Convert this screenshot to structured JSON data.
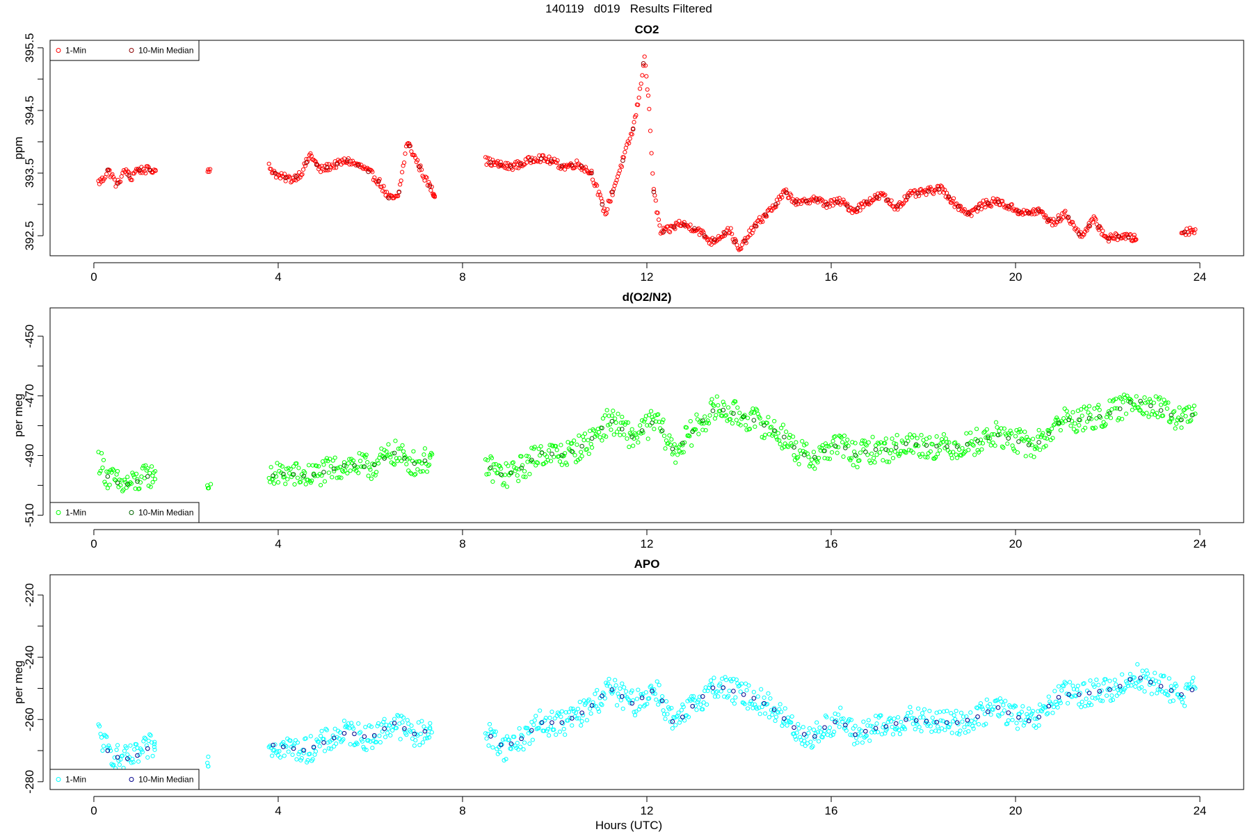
{
  "page_title": "140119   d019   Results Filtered",
  "x_axis_label": "Hours (UTC)",
  "chart_data": [
    {
      "type": "scatter",
      "title": "CO2",
      "xlabel": "",
      "ylabel": "ppm",
      "xlim": [
        -0.95,
        24.95
      ],
      "ylim": [
        392.18,
        395.62
      ],
      "xticks": [
        0,
        4,
        8,
        12,
        16,
        20,
        24
      ],
      "yticks": [
        392.5,
        393.5,
        394.5,
        395.5
      ],
      "ytick_labels": [
        "392.5",
        "393.5",
        "394.5",
        "395.5"
      ],
      "legend": {
        "position": "top-left",
        "entries": [
          "1-Min",
          "10-Min Median"
        ]
      },
      "colors": {
        "one_min": "#ff0000",
        "median": "#8b0000"
      },
      "series": [
        {
          "name": "1-Min",
          "anchors": [
            [
              0.1,
              393.35
            ],
            [
              0.2,
              393.4
            ],
            [
              0.3,
              393.55
            ],
            [
              0.4,
              393.45
            ],
            [
              0.5,
              393.3
            ],
            [
              0.6,
              393.45
            ],
            [
              0.7,
              393.55
            ],
            [
              0.8,
              393.4
            ],
            [
              0.9,
              393.55
            ],
            [
              1.3,
              393.55
            ],
            [
              2.5,
              393.55
            ],
            [
              3.8,
              393.6
            ],
            [
              4.0,
              393.45
            ],
            [
              4.3,
              393.4
            ],
            [
              4.5,
              393.5
            ],
            [
              4.7,
              393.8
            ],
            [
              4.9,
              393.55
            ],
            [
              5.5,
              393.7
            ],
            [
              5.8,
              393.6
            ],
            [
              6.0,
              393.5
            ],
            [
              6.2,
              393.35
            ],
            [
              6.4,
              393.1
            ],
            [
              6.6,
              393.1
            ],
            [
              6.8,
              394.0
            ],
            [
              7.0,
              393.7
            ],
            [
              7.2,
              393.4
            ],
            [
              7.4,
              393.15
            ],
            [
              8.5,
              393.7
            ],
            [
              8.7,
              393.65
            ],
            [
              9.0,
              393.6
            ],
            [
              9.3,
              393.65
            ],
            [
              9.6,
              393.75
            ],
            [
              9.9,
              393.7
            ],
            [
              10.2,
              393.6
            ],
            [
              10.5,
              393.65
            ],
            [
              10.8,
              393.5
            ],
            [
              11.1,
              392.85
            ],
            [
              11.3,
              393.3
            ],
            [
              11.7,
              394.2
            ],
            [
              11.85,
              394.8
            ],
            [
              11.95,
              395.4
            ],
            [
              12.05,
              394.5
            ],
            [
              12.15,
              393.2
            ],
            [
              12.3,
              392.55
            ],
            [
              12.5,
              392.6
            ],
            [
              12.7,
              392.7
            ],
            [
              13.1,
              392.6
            ],
            [
              13.4,
              392.4
            ],
            [
              13.6,
              392.5
            ],
            [
              13.8,
              392.6
            ],
            [
              14.0,
              392.25
            ],
            [
              14.2,
              392.5
            ],
            [
              14.4,
              392.7
            ],
            [
              14.6,
              392.85
            ],
            [
              14.8,
              393.0
            ],
            [
              15.0,
              393.2
            ],
            [
              15.3,
              393.0
            ],
            [
              15.6,
              393.1
            ],
            [
              15.9,
              393.0
            ],
            [
              16.2,
              393.05
            ],
            [
              16.5,
              392.9
            ],
            [
              16.8,
              393.05
            ],
            [
              17.1,
              393.15
            ],
            [
              17.4,
              392.95
            ],
            [
              17.7,
              393.15
            ],
            [
              18.4,
              393.25
            ],
            [
              18.7,
              393.0
            ],
            [
              19.0,
              392.85
            ],
            [
              19.3,
              393.0
            ],
            [
              19.6,
              393.05
            ],
            [
              19.9,
              392.95
            ],
            [
              20.2,
              392.85
            ],
            [
              20.5,
              392.9
            ],
            [
              20.8,
              392.7
            ],
            [
              21.1,
              392.85
            ],
            [
              21.4,
              392.5
            ],
            [
              21.7,
              392.75
            ],
            [
              22.0,
              392.45
            ],
            [
              22.3,
              392.5
            ],
            [
              22.6,
              392.45
            ],
            [
              23.6,
              392.55
            ],
            [
              23.9,
              392.6
            ]
          ],
          "gap_after_hours": 0.9
        }
      ]
    },
    {
      "type": "scatter",
      "title": "d(O2/N2)",
      "xlabel": "",
      "ylabel": "per meg",
      "xlim": [
        -0.95,
        24.95
      ],
      "ylim": [
        -512.5,
        -440.5
      ],
      "xticks": [
        0,
        4,
        8,
        12,
        16,
        20,
        24
      ],
      "yticks": [
        -510,
        -490,
        -470,
        -450
      ],
      "ytick_labels": [
        "-510",
        "-490",
        "-470",
        "-450"
      ],
      "legend": {
        "position": "bottom-left",
        "entries": [
          "1-Min",
          "10-Min Median"
        ]
      },
      "colors": {
        "one_min": "#00ff00",
        "median": "#006400"
      },
      "series": [
        {
          "name": "1-Min",
          "anchors": [
            [
              0.1,
              -491
            ],
            [
              0.3,
              -497
            ],
            [
              0.6,
              -500
            ],
            [
              0.9,
              -499
            ],
            [
              1.3,
              -496
            ],
            [
              2.5,
              -501
            ],
            [
              3.8,
              -497
            ],
            [
              4.2,
              -496
            ],
            [
              4.6,
              -497
            ],
            [
              4.9,
              -496
            ],
            [
              5.5,
              -493
            ],
            [
              6.0,
              -494
            ],
            [
              6.5,
              -489
            ],
            [
              7.0,
              -493
            ],
            [
              7.3,
              -491
            ],
            [
              8.5,
              -493
            ],
            [
              8.9,
              -497
            ],
            [
              9.3,
              -494
            ],
            [
              9.7,
              -489
            ],
            [
              10.2,
              -490
            ],
            [
              10.7,
              -486
            ],
            [
              11.2,
              -478
            ],
            [
              11.7,
              -484
            ],
            [
              12.2,
              -478
            ],
            [
              12.6,
              -489
            ],
            [
              13.1,
              -480
            ],
            [
              13.5,
              -474
            ],
            [
              13.9,
              -476
            ],
            [
              14.3,
              -478
            ],
            [
              14.7,
              -481
            ],
            [
              15.0,
              -484
            ],
            [
              15.3,
              -489
            ],
            [
              15.6,
              -491
            ],
            [
              15.9,
              -488
            ],
            [
              16.2,
              -486
            ],
            [
              16.5,
              -490
            ],
            [
              16.9,
              -488
            ],
            [
              17.3,
              -488
            ],
            [
              17.6,
              -486
            ],
            [
              18.4,
              -487
            ],
            [
              18.8,
              -487
            ],
            [
              19.2,
              -485
            ],
            [
              19.6,
              -483
            ],
            [
              20.0,
              -485
            ],
            [
              20.4,
              -487
            ],
            [
              20.7,
              -483
            ],
            [
              21.0,
              -478
            ],
            [
              21.4,
              -478
            ],
            [
              21.8,
              -477
            ],
            [
              22.2,
              -475
            ],
            [
              22.6,
              -471
            ],
            [
              23.6,
              -478
            ],
            [
              23.9,
              -476
            ]
          ],
          "gap_after_hours": 1.0
        }
      ]
    },
    {
      "type": "scatter",
      "title": "APO",
      "xlabel": "Hours (UTC)",
      "ylabel": "per meg",
      "xlim": [
        -0.95,
        24.95
      ],
      "ylim": [
        -282.5,
        -213.5
      ],
      "xticks": [
        0,
        4,
        8,
        12,
        16,
        20,
        24
      ],
      "yticks": [
        -280,
        -260,
        -240,
        -220
      ],
      "ytick_labels": [
        "-280",
        "-260",
        "-240",
        "-220"
      ],
      "legend": {
        "position": "bottom-left",
        "entries": [
          "1-Min",
          "10-Min Median"
        ]
      },
      "colors": {
        "one_min": "#00ffff",
        "median": "#00008b"
      },
      "series": [
        {
          "name": "1-Min",
          "anchors": [
            [
              0.1,
              -264
            ],
            [
              0.3,
              -270
            ],
            [
              0.6,
              -273
            ],
            [
              0.9,
              -272
            ],
            [
              1.3,
              -268
            ],
            [
              2.5,
              -273
            ],
            [
              3.8,
              -268
            ],
            [
              4.2,
              -269
            ],
            [
              4.6,
              -270
            ],
            [
              4.9,
              -268
            ],
            [
              5.5,
              -264
            ],
            [
              6.0,
              -266
            ],
            [
              6.5,
              -261
            ],
            [
              7.0,
              -265
            ],
            [
              7.3,
              -263
            ],
            [
              8.5,
              -264
            ],
            [
              8.9,
              -269
            ],
            [
              9.3,
              -266
            ],
            [
              9.7,
              -261
            ],
            [
              10.2,
              -261
            ],
            [
              10.7,
              -257
            ],
            [
              11.2,
              -250
            ],
            [
              11.7,
              -255
            ],
            [
              12.2,
              -250
            ],
            [
              12.6,
              -262
            ],
            [
              13.1,
              -254
            ],
            [
              13.5,
              -249
            ],
            [
              13.9,
              -251
            ],
            [
              14.3,
              -253
            ],
            [
              14.7,
              -256
            ],
            [
              15.0,
              -260
            ],
            [
              15.3,
              -264
            ],
            [
              15.6,
              -266
            ],
            [
              15.9,
              -262
            ],
            [
              16.2,
              -260
            ],
            [
              16.5,
              -265
            ],
            [
              16.9,
              -263
            ],
            [
              17.3,
              -262
            ],
            [
              17.6,
              -260
            ],
            [
              18.4,
              -261
            ],
            [
              18.8,
              -261
            ],
            [
              19.2,
              -259
            ],
            [
              19.6,
              -256
            ],
            [
              20.0,
              -259
            ],
            [
              20.4,
              -261
            ],
            [
              20.7,
              -256
            ],
            [
              21.0,
              -252
            ],
            [
              21.4,
              -252
            ],
            [
              21.8,
              -251
            ],
            [
              22.2,
              -250
            ],
            [
              22.6,
              -246
            ],
            [
              23.6,
              -252
            ],
            [
              23.9,
              -250
            ]
          ],
          "gap_after_hours": 1.0
        }
      ]
    }
  ]
}
